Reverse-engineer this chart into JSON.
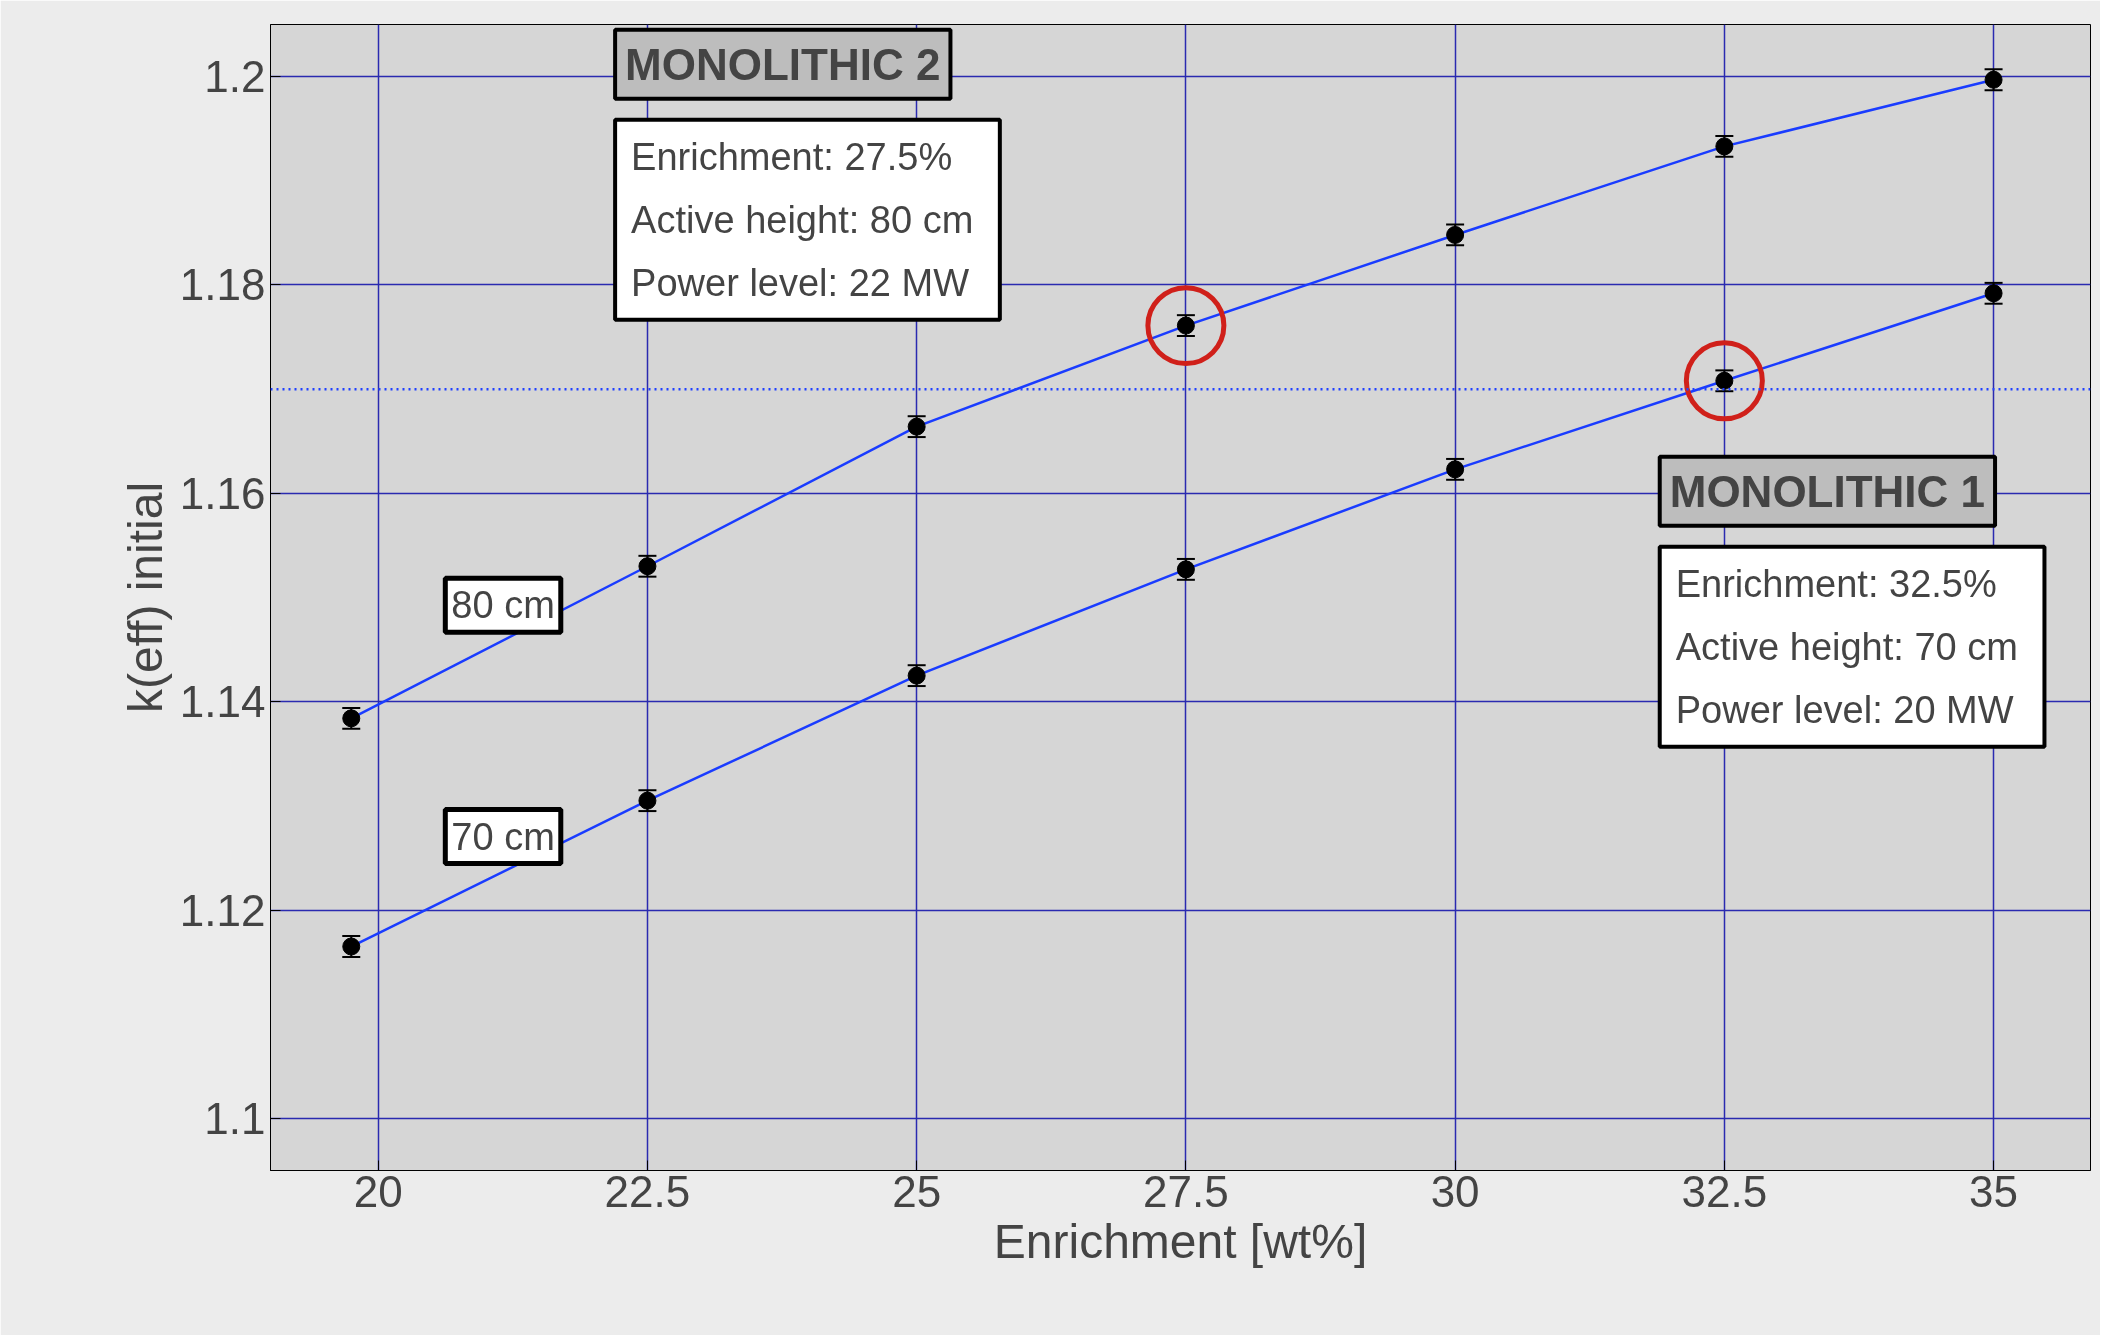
{
  "chart_data": {
    "type": "line",
    "xlabel": "Enrichment [wt%]",
    "ylabel": "k(eff) initial",
    "xlim": [
      19,
      35.9
    ],
    "xticks": [
      20,
      22.5,
      25,
      27.5,
      30,
      32.5,
      35
    ],
    "ylim": [
      1.095,
      1.205
    ],
    "yticks": [
      1.1,
      1.12,
      1.14,
      1.16,
      1.18,
      1.2
    ],
    "grid": true,
    "marker": "circle",
    "line_style": "solid",
    "x": [
      19.75,
      22.5,
      25,
      27.5,
      30,
      32.5,
      35
    ],
    "series": [
      {
        "name": "80 cm",
        "color": "#1a3cff",
        "values": [
          1.1384,
          1.153,
          1.1664,
          1.1761,
          1.1848,
          1.1933,
          1.1997
        ],
        "errors": [
          0.001,
          0.001,
          0.001,
          0.001,
          0.001,
          0.001,
          0.001
        ]
      },
      {
        "name": "70 cm",
        "color": "#1a3cff",
        "values": [
          1.1165,
          1.1305,
          1.1425,
          1.1527,
          1.1623,
          1.1708,
          1.1792
        ],
        "errors": [
          0.001,
          0.001,
          0.001,
          0.001,
          0.001,
          0.001,
          0.001
        ]
      },
      {
        "type": "scatter",
        "color": "#d0201a",
        "x": [
          27.5,
          32.5
        ],
        "values": [
          1.1761,
          1.1708
        ]
      }
    ],
    "ref_lines": [
      {
        "axis": "y",
        "value": 1.17,
        "color": "#2040ff",
        "line_style": "dotted"
      }
    ],
    "annotations": [
      "MONOLITHIC 2\nEnrichment:  27.5%\nActive height:  80 cm\nPower level:  22 MW",
      "MONOLITHIC 1\nEnrichment:  32.5%\nActive height:  70 cm\nPower level:  20 MW"
    ]
  }
}
